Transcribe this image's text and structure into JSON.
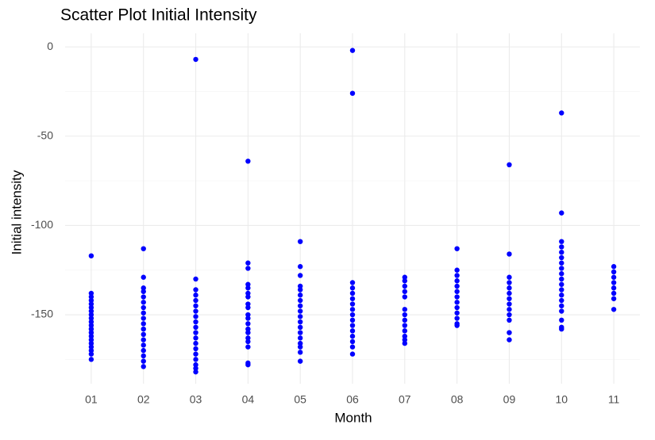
{
  "chart_data": {
    "type": "scatter",
    "title": "Scatter Plot Initial Intensity",
    "x_label": "Month",
    "y_label": "Initial intensity",
    "categories": [
      "01",
      "02",
      "03",
      "04",
      "05",
      "06",
      "07",
      "08",
      "09",
      "10",
      "11"
    ],
    "values": [
      [
        -117,
        -138,
        -140,
        -142,
        -144,
        -146,
        -148,
        -150,
        -152,
        -154,
        -156,
        -158,
        -160,
        -162,
        -164,
        -166,
        -168,
        -170,
        -172,
        -175
      ],
      [
        -113,
        -129,
        -135,
        -137,
        -140,
        -143,
        -146,
        -149,
        -152,
        -155,
        -158,
        -161,
        -164,
        -167,
        -170,
        -173,
        -176,
        -179
      ],
      [
        -7,
        -130,
        -136,
        -139,
        -142,
        -145,
        -148,
        -151,
        -154,
        -157,
        -160,
        -163,
        -166,
        -169,
        -172,
        -175,
        -178,
        -180,
        -182
      ],
      [
        -64,
        -121,
        -124,
        -133,
        -135,
        -138,
        -140,
        -144,
        -146,
        -150,
        -152,
        -155,
        -158,
        -160,
        -163,
        -165,
        -168,
        -177,
        -178
      ],
      [
        -109,
        -123,
        -128,
        -134,
        -136,
        -139,
        -142,
        -145,
        -148,
        -151,
        -154,
        -157,
        -160,
        -163,
        -166,
        -168,
        -171,
        -176
      ],
      [
        -2,
        -26,
        -132,
        -135,
        -138,
        -141,
        -144,
        -147,
        -150,
        -153,
        -156,
        -159,
        -162,
        -165,
        -168,
        -172
      ],
      [
        -129,
        -131,
        -134,
        -137,
        -140,
        -147,
        -150,
        -153,
        -156,
        -159,
        -162,
        -164,
        -166
      ],
      [
        -113,
        -125,
        -128,
        -131,
        -134,
        -137,
        -140,
        -143,
        -146,
        -149,
        -152,
        -155,
        -156
      ],
      [
        -66,
        -116,
        -129,
        -132,
        -135,
        -138,
        -141,
        -144,
        -147,
        -150,
        -153,
        -160,
        -164
      ],
      [
        -37,
        -93,
        -109,
        -112,
        -115,
        -118,
        -121,
        -124,
        -127,
        -130,
        -133,
        -136,
        -139,
        -142,
        -145,
        -148,
        -153,
        -157,
        -158
      ],
      [
        -123,
        -126,
        -129,
        -132,
        -135,
        -138,
        -141,
        -147
      ]
    ],
    "color": "#0000ff",
    "ylim": [
      -188.6,
      7.6
    ],
    "yticks": [
      0,
      -50,
      -100,
      -150
    ],
    "minor_yticks": [
      -25,
      -75,
      -125,
      -175
    ],
    "grid": true
  }
}
